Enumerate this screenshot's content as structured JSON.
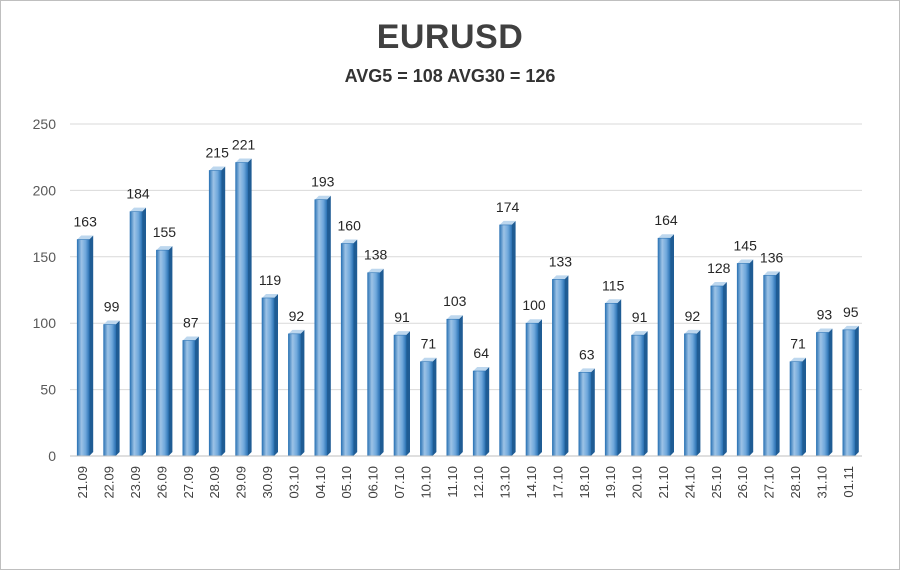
{
  "chart_data": {
    "type": "bar",
    "title": "EURUSD",
    "subtitle": "AVG5 = 108 AVG30 = 126",
    "categories": [
      "21.09",
      "22.09",
      "23.09",
      "26.09",
      "27.09",
      "28.09",
      "29.09",
      "30.09",
      "03.10",
      "04.10",
      "05.10",
      "06.10",
      "07.10",
      "10.10",
      "11.10",
      "12.10",
      "13.10",
      "14.10",
      "17.10",
      "18.10",
      "19.10",
      "20.10",
      "21.10",
      "24.10",
      "25.10",
      "26.10",
      "27.10",
      "28.10",
      "31.10",
      "01.11"
    ],
    "values": [
      163,
      99,
      184,
      155,
      87,
      215,
      221,
      119,
      92,
      193,
      160,
      138,
      91,
      71,
      103,
      64,
      174,
      100,
      133,
      63,
      115,
      91,
      164,
      92,
      128,
      145,
      136,
      71,
      93,
      95
    ],
    "ylim": [
      0,
      250
    ],
    "yticks": [
      0,
      50,
      100,
      150,
      200,
      250
    ],
    "grid": true,
    "legend": "none",
    "colors": {
      "bar_light": "#9dc3e6",
      "bar_mid": "#5b9bd5",
      "bar_dark": "#2e75b6",
      "grid": "#d9d9d9"
    }
  }
}
